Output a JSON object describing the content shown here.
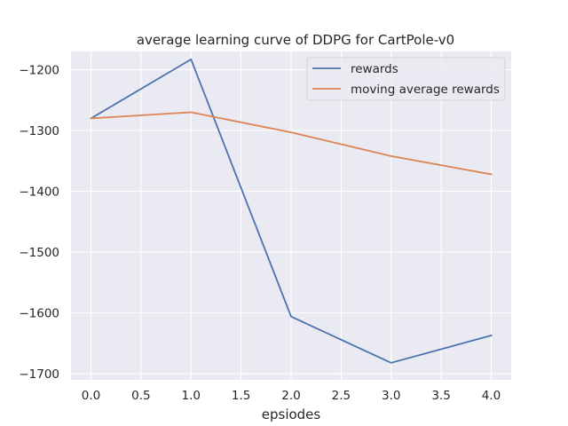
{
  "chart_data": {
    "type": "line",
    "title": "average learning curve of DDPG for CartPole-v0",
    "xlabel": "epsiodes",
    "ylabel": "",
    "x": [
      0,
      1,
      2,
      3,
      4
    ],
    "xlim": [
      -0.2,
      4.2
    ],
    "ylim": [
      -1710,
      -1170
    ],
    "xticks": [
      "0.0",
      "0.5",
      "1.0",
      "1.5",
      "2.0",
      "2.5",
      "3.0",
      "3.5",
      "4.0"
    ],
    "xtick_values": [
      0,
      0.5,
      1,
      1.5,
      2,
      2.5,
      3,
      3.5,
      4
    ],
    "yticks": [
      "−1200",
      "−1300",
      "−1400",
      "−1500",
      "−1600",
      "−1700"
    ],
    "ytick_values": [
      -1200,
      -1300,
      -1400,
      -1500,
      -1600,
      -1700
    ],
    "grid": true,
    "background": "#eaeaf2",
    "legend_position": "top-right",
    "series": [
      {
        "name": "rewards",
        "color": "#4c72b0",
        "values": [
          -1280,
          -1183,
          -1606,
          -1682,
          -1637
        ]
      },
      {
        "name": "moving average rewards",
        "color": "#dd8452",
        "values": [
          -1280,
          -1270,
          -1303,
          -1342,
          -1372
        ]
      }
    ]
  }
}
